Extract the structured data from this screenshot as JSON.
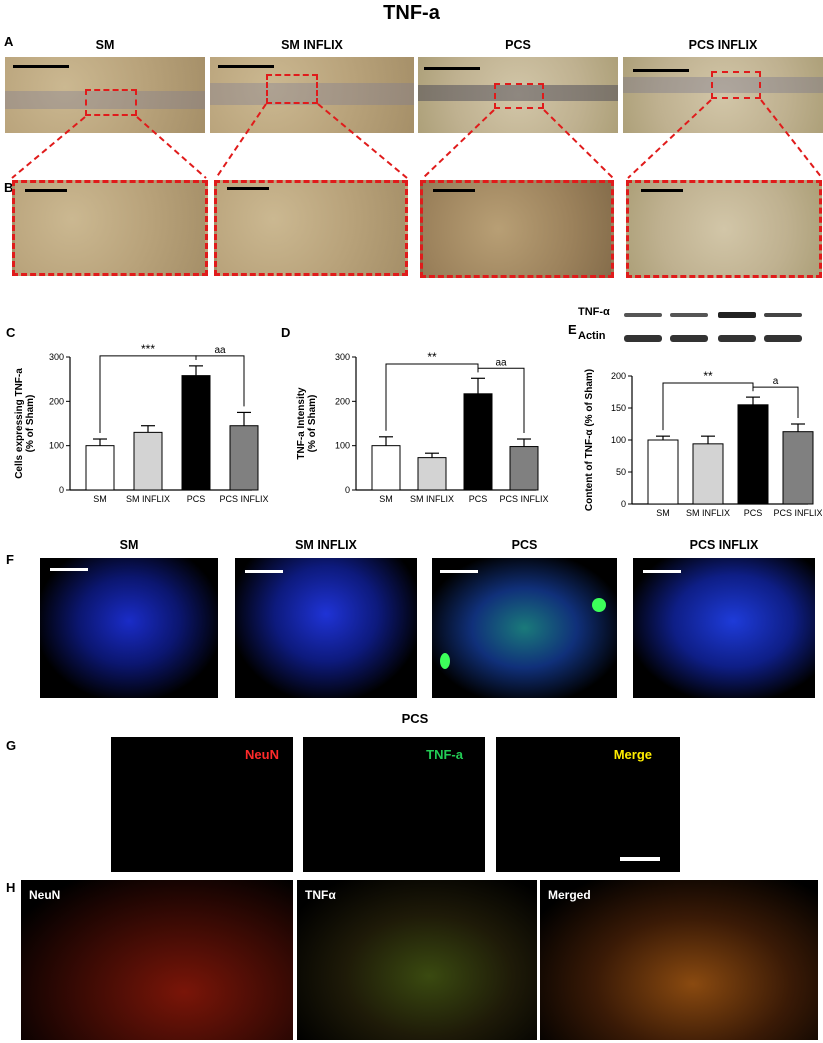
{
  "figure": {
    "title": "TNF-a",
    "panels": {
      "A": "A",
      "B": "B",
      "C": "C",
      "D": "D",
      "E": "E",
      "F": "F",
      "G": "G",
      "H": "H"
    },
    "groups": [
      "SM",
      "SM INFLIX",
      "PCS",
      "PCS INFLIX"
    ],
    "g_title": "PCS",
    "g_labels": {
      "neun": "NeuN",
      "tnf": "TNF-a",
      "merge": "Merge"
    },
    "h_labels": {
      "neun": "NeuN",
      "tnf": "TNFα",
      "merge": "Merged"
    },
    "blot_labels": {
      "tnf": "TNF-α",
      "actin": "Actin"
    },
    "colors": {
      "red_box": "#e01b1b",
      "neun": "#ff2a2a",
      "tnf": "#22cc55",
      "merge": "#ffee00"
    }
  },
  "chart_data": [
    {
      "id": "C",
      "type": "bar",
      "categories": [
        "SM",
        "SM INFLIX",
        "PCS",
        "PCS INFLIX"
      ],
      "values": [
        100,
        130,
        258,
        145
      ],
      "errors": [
        15,
        15,
        22,
        30
      ],
      "ylabel": "Cells expressing TNF-a\n(% of Sham)",
      "ylim": [
        0,
        300
      ],
      "yticks": [
        0,
        100,
        200,
        300
      ],
      "bar_colors": [
        "#ffffff",
        "#d3d3d3",
        "#000000",
        "#808080"
      ],
      "annotations": [
        {
          "label": "***",
          "from": 0,
          "to": 2
        },
        {
          "label": "aa",
          "from": 2,
          "to": 3
        }
      ]
    },
    {
      "id": "D",
      "type": "bar",
      "categories": [
        "SM",
        "SM INFLIX",
        "PCS",
        "PCS INFLIX"
      ],
      "values": [
        100,
        73,
        217,
        98
      ],
      "errors": [
        20,
        10,
        35,
        17
      ],
      "ylabel": "TNF-a Intensity\n(% of Sham)",
      "ylim": [
        0,
        300
      ],
      "yticks": [
        0,
        100,
        200,
        300
      ],
      "bar_colors": [
        "#ffffff",
        "#d3d3d3",
        "#000000",
        "#808080"
      ],
      "annotations": [
        {
          "label": "**",
          "from": 0,
          "to": 2
        },
        {
          "label": "aa",
          "from": 2,
          "to": 3
        }
      ]
    },
    {
      "id": "E",
      "type": "bar",
      "categories": [
        "SM",
        "SM INFLIX",
        "PCS",
        "PCS INFLIX"
      ],
      "values": [
        100,
        94,
        155,
        113
      ],
      "errors": [
        6,
        12,
        12,
        12
      ],
      "ylabel": "Content of TNF-α (% of Sham)",
      "ylim": [
        0,
        200
      ],
      "yticks": [
        0,
        50,
        100,
        150,
        200
      ],
      "bar_colors": [
        "#ffffff",
        "#d3d3d3",
        "#000000",
        "#808080"
      ],
      "annotations": [
        {
          "label": "**",
          "from": 0,
          "to": 2
        },
        {
          "label": "a",
          "from": 2,
          "to": 3
        }
      ]
    }
  ]
}
